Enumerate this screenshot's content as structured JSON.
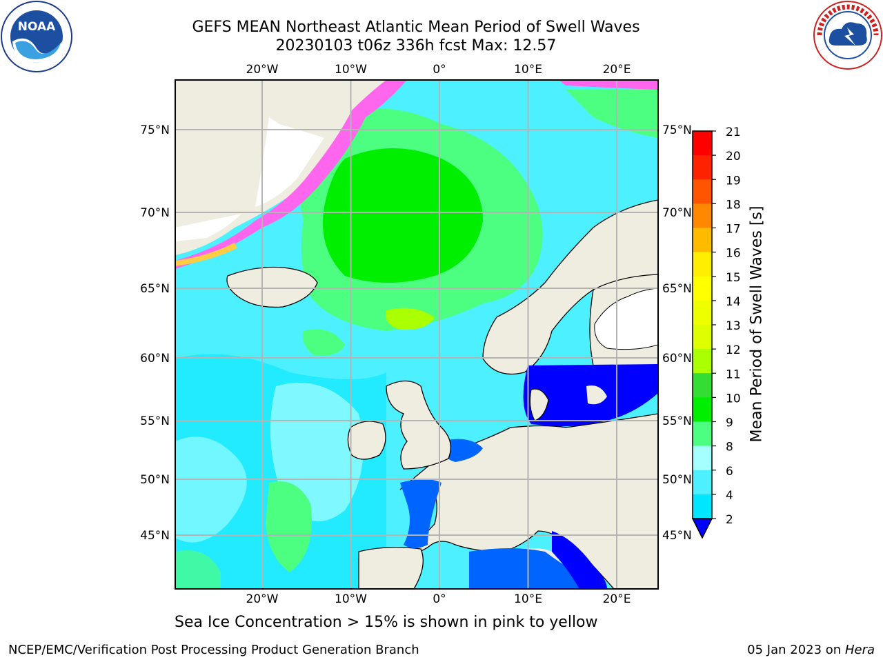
{
  "title": {
    "line1": "GEFS MEAN Northeast Atlantic Mean Period of Swell Waves",
    "line2": "20230103 t06z 336h fcst   Max: 12.57"
  },
  "logos": {
    "noaa": {
      "text": "NOAA",
      "ring": "NATIONAL OCEANIC AND ATMOSPHERIC ADMINISTRATION · U.S. DEPARTMENT OF COMMERCE"
    },
    "nws": {
      "ring": "NATIONAL WEATHER SERVICE"
    }
  },
  "map": {
    "lon_labels": [
      "20°W",
      "10°W",
      "0°",
      "10°E",
      "20°E"
    ],
    "lat_labels": [
      "75°N",
      "70°N",
      "65°N",
      "60°N",
      "55°N",
      "50°N",
      "45°N"
    ],
    "lon_values": [
      -20,
      -10,
      0,
      10,
      20
    ],
    "lat_values": [
      75,
      70,
      65,
      60,
      55,
      50,
      45
    ]
  },
  "colorbar": {
    "label": "Mean Period of Swell Waves [s]",
    "ticks": [
      "2",
      "4",
      "6",
      "8",
      "9",
      "10",
      "11",
      "12",
      "13",
      "14",
      "15",
      "16",
      "17",
      "18",
      "19",
      "20",
      "21"
    ],
    "colors": [
      "#0064ff",
      "#00e6ff",
      "#4df0ff",
      "#a6ffff",
      "#4dff80",
      "#00ee00",
      "#33dd33",
      "#aaff00",
      "#ddff00",
      "#eeff00",
      "#ffff00",
      "#ffee00",
      "#ffbb00",
      "#ff8800",
      "#ff5500",
      "#ff2200",
      "#ff0000"
    ],
    "extend_color": "#0000ff"
  },
  "caption": "Sea Ice Concentration > 15% is shown in pink to yellow",
  "footer": {
    "left": "NCEP/EMC/Verification Post Processing Product Generation Branch",
    "right_date": "05 Jan 2023 on ",
    "right_host": "Hera"
  }
}
